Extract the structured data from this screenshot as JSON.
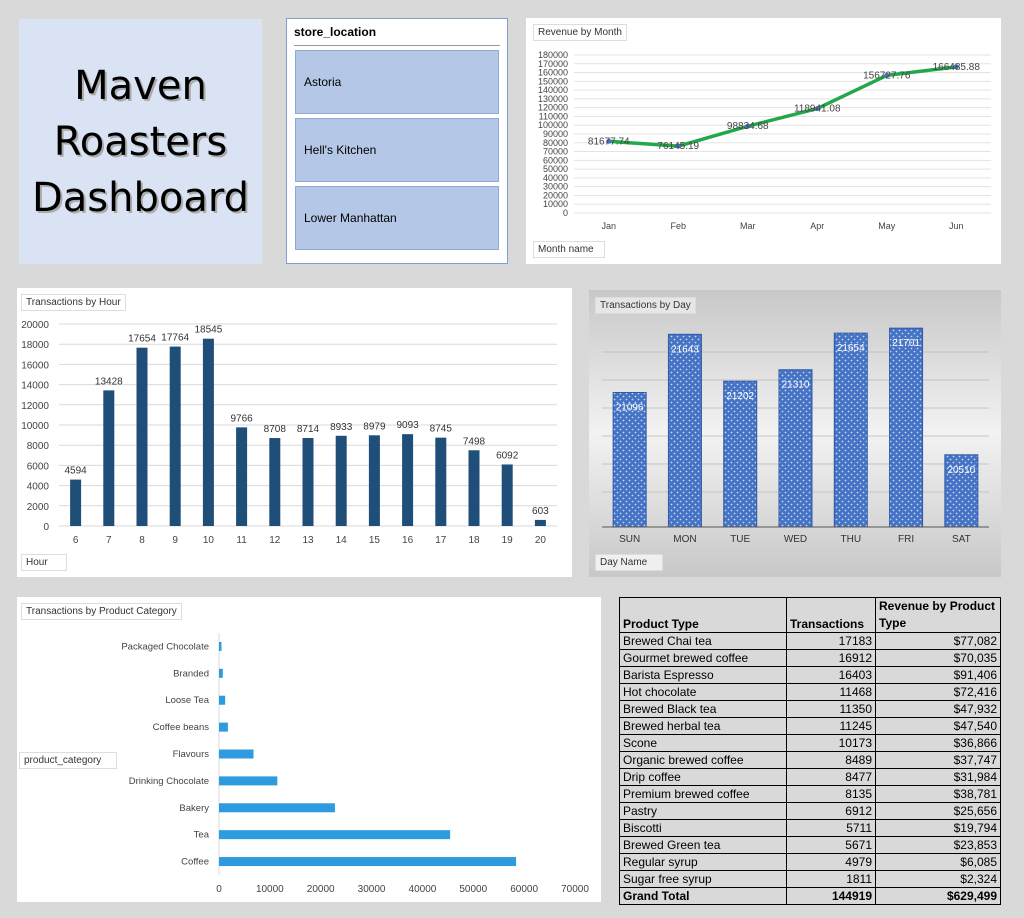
{
  "title": {
    "line1": "Maven",
    "line2": "Roasters",
    "line3": "Dashboard"
  },
  "slicer": {
    "header": "store_location",
    "items": [
      "Astoria",
      "Hell's Kitchen",
      "Lower Manhattan"
    ]
  },
  "revenue_chart": {
    "title": "Revenue by Month",
    "field_button": "Month name",
    "chart_data": {
      "type": "line",
      "categories": [
        "Jan",
        "Feb",
        "Mar",
        "Apr",
        "May",
        "Jun"
      ],
      "values": [
        81677.74,
        76145.19,
        98834.68,
        118941.08,
        156727.76,
        166485.88
      ],
      "labels": [
        "81677.74",
        "76145.19",
        "98834.68",
        "118941.08",
        "156727.76",
        "166485.88"
      ],
      "ylim": [
        0,
        180000
      ],
      "yticks": [
        "180000",
        "170000",
        "160000",
        "150000",
        "140000",
        "130000",
        "120000",
        "110000",
        "100000",
        "90000",
        "80000",
        "70000",
        "60000",
        "50000",
        "40000",
        "30000",
        "20000",
        "10000",
        "0"
      ],
      "color": "#22a84a"
    }
  },
  "hour_chart": {
    "title": "Transactions by Hour",
    "field_button": "Hour",
    "chart_data": {
      "type": "bar",
      "categories": [
        "6",
        "7",
        "8",
        "9",
        "10",
        "11",
        "12",
        "13",
        "14",
        "15",
        "16",
        "17",
        "18",
        "19",
        "20"
      ],
      "values": [
        4594,
        13428,
        17654,
        17764,
        18545,
        9766,
        8708,
        8714,
        8933,
        8979,
        9093,
        8745,
        7498,
        6092,
        603
      ],
      "ylim": [
        0,
        20000
      ],
      "yticks": [
        "20000",
        "18000",
        "16000",
        "14000",
        "12000",
        "10000",
        "8000",
        "6000",
        "4000",
        "2000",
        "0"
      ],
      "color": "#1f4e79"
    }
  },
  "day_chart": {
    "title": "Transactions by Day",
    "field_button": "Day Name",
    "chart_data": {
      "type": "bar",
      "categories": [
        "SUN",
        "MON",
        "TUE",
        "WED",
        "THU",
        "FRI",
        "SAT"
      ],
      "values": [
        21096,
        21643,
        21202,
        21310,
        21654,
        21701,
        20510
      ],
      "color": "#4472c4"
    }
  },
  "category_chart": {
    "title": "Transactions by Product Category",
    "field_button": "product_category",
    "chart_data": {
      "type": "bar",
      "orientation": "horizontal",
      "categories": [
        "Packaged Chocolate",
        "Branded",
        "Loose Tea",
        "Coffee beans",
        "Flavours",
        "Drinking Chocolate",
        "Bakery",
        "Tea",
        "Coffee"
      ],
      "values": [
        487,
        747,
        1210,
        1753,
        6790,
        11468,
        22796,
        45449,
        58416
      ],
      "xlim": [
        0,
        70000
      ],
      "xticks": [
        "0",
        "10000",
        "20000",
        "30000",
        "40000",
        "50000",
        "60000",
        "70000"
      ],
      "color": "#2e9be0"
    }
  },
  "product_table": {
    "headers": [
      "Product Type",
      "Transactions",
      "Revenue by Product Type"
    ],
    "header_revenue_line1": "Revenue by Product",
    "header_revenue_line2": "Type",
    "rows": [
      [
        "Brewed Chai tea",
        "17183",
        "$77,082"
      ],
      [
        "Gourmet brewed coffee",
        "16912",
        "$70,035"
      ],
      [
        "Barista Espresso",
        "16403",
        "$91,406"
      ],
      [
        "Hot chocolate",
        "11468",
        "$72,416"
      ],
      [
        "Brewed Black tea",
        "11350",
        "$47,932"
      ],
      [
        "Brewed herbal tea",
        "11245",
        "$47,540"
      ],
      [
        "Scone",
        "10173",
        "$36,866"
      ],
      [
        "Organic brewed coffee",
        "8489",
        "$37,747"
      ],
      [
        "Drip coffee",
        "8477",
        "$31,984"
      ],
      [
        "Premium brewed coffee",
        "8135",
        "$38,781"
      ],
      [
        "Pastry",
        "6912",
        "$25,656"
      ],
      [
        "Biscotti",
        "5711",
        "$19,794"
      ],
      [
        "Brewed Green tea",
        "5671",
        "$23,853"
      ],
      [
        "Regular syrup",
        "4979",
        "$6,085"
      ],
      [
        "Sugar free syrup",
        "1811",
        "$2,324"
      ]
    ],
    "total": [
      "Grand Total",
      "144919",
      "$629,499"
    ]
  }
}
